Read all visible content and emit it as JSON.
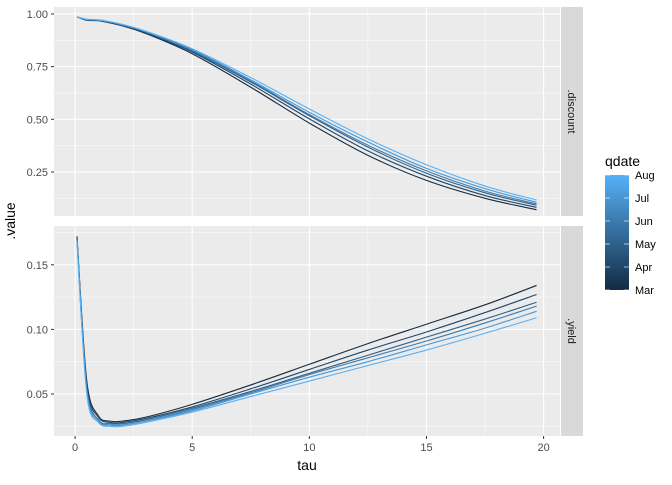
{
  "chart_data": {
    "type": "line",
    "xlabel": "tau",
    "ylabel": ".value",
    "x_ticks": [
      "0",
      "5",
      "10",
      "15",
      "20"
    ],
    "xlim": [
      -0.9,
      20.7
    ],
    "grid": true,
    "legend": {
      "title": "qdate",
      "position": "right",
      "labels": [
        "Aug",
        "Jul",
        "Jun",
        "May",
        "Apr",
        "Mar"
      ],
      "low_color": "#132B43",
      "high_color": "#56B1F7"
    },
    "tau": [
      0.08,
      0.5,
      1,
      1.5,
      2,
      3,
      5,
      7.5,
      10,
      12.5,
      15,
      17.5,
      19.7
    ],
    "facets": [
      {
        "strip": ".discount",
        "ylim": [
          0.041,
          1.033
        ],
        "y_ticks": [
          "1.00",
          "0.75",
          "0.50",
          "0.25"
        ],
        "y_tick_values": [
          1.0,
          0.75,
          0.5,
          0.25
        ],
        "series": [
          {
            "name": "Mar",
            "values": [
              0.986,
              0.97,
              0.968,
              0.957,
              0.944,
              0.908,
              0.811,
              0.652,
              0.482,
              0.329,
              0.21,
              0.125,
              0.071
            ]
          },
          {
            "name": "Apr",
            "values": [
              0.986,
              0.972,
              0.969,
              0.959,
              0.946,
              0.911,
              0.819,
              0.667,
              0.502,
              0.35,
              0.23,
              0.138,
              0.082
            ]
          },
          {
            "name": "May",
            "values": [
              0.986,
              0.973,
              0.97,
              0.96,
              0.947,
              0.914,
              0.823,
              0.677,
              0.517,
              0.368,
              0.244,
              0.151,
              0.092
            ]
          },
          {
            "name": "Jun",
            "values": [
              0.986,
              0.973,
              0.97,
              0.962,
              0.949,
              0.917,
              0.827,
              0.682,
              0.522,
              0.377,
              0.255,
              0.159,
              0.098
            ]
          },
          {
            "name": "Jul",
            "values": [
              0.986,
              0.974,
              0.971,
              0.962,
              0.949,
              0.917,
              0.831,
              0.687,
              0.533,
              0.392,
              0.267,
              0.171,
              0.106
            ]
          },
          {
            "name": "Aug",
            "values": [
              0.986,
              0.975,
              0.972,
              0.963,
              0.951,
              0.919,
              0.835,
              0.698,
              0.549,
              0.407,
              0.284,
              0.183,
              0.117
            ]
          }
        ]
      },
      {
        "strip": ".yield",
        "ylim": [
          0.0175,
          0.18
        ],
        "y_ticks": [
          "0.15",
          "0.10",
          "0.05"
        ],
        "y_tick_values": [
          0.15,
          0.1,
          0.05
        ],
        "series": [
          {
            "name": "Mar",
            "values": [
              0.172,
              0.06,
              0.033,
              0.029,
              0.029,
              0.032,
              0.042,
              0.057,
              0.073,
              0.089,
              0.104,
              0.119,
              0.134
            ]
          },
          {
            "name": "Apr",
            "values": [
              0.171,
              0.057,
              0.032,
              0.028,
              0.028,
              0.031,
              0.04,
              0.054,
              0.069,
              0.084,
              0.098,
              0.113,
              0.127
            ]
          },
          {
            "name": "May",
            "values": [
              0.17,
              0.055,
              0.03,
              0.027,
              0.027,
              0.03,
              0.039,
              0.052,
              0.066,
              0.08,
              0.094,
              0.108,
              0.121
            ]
          },
          {
            "name": "Jun",
            "values": [
              0.169,
              0.054,
              0.03,
              0.026,
              0.026,
              0.029,
              0.038,
              0.051,
              0.065,
              0.078,
              0.091,
              0.105,
              0.118
            ]
          },
          {
            "name": "Jul",
            "values": [
              0.169,
              0.052,
              0.029,
              0.026,
              0.026,
              0.029,
              0.037,
              0.05,
              0.063,
              0.075,
              0.088,
              0.101,
              0.114
            ]
          },
          {
            "name": "Aug",
            "values": [
              0.168,
              0.05,
              0.028,
              0.025,
              0.025,
              0.028,
              0.036,
              0.048,
              0.06,
              0.072,
              0.084,
              0.097,
              0.109
            ]
          }
        ]
      }
    ]
  }
}
